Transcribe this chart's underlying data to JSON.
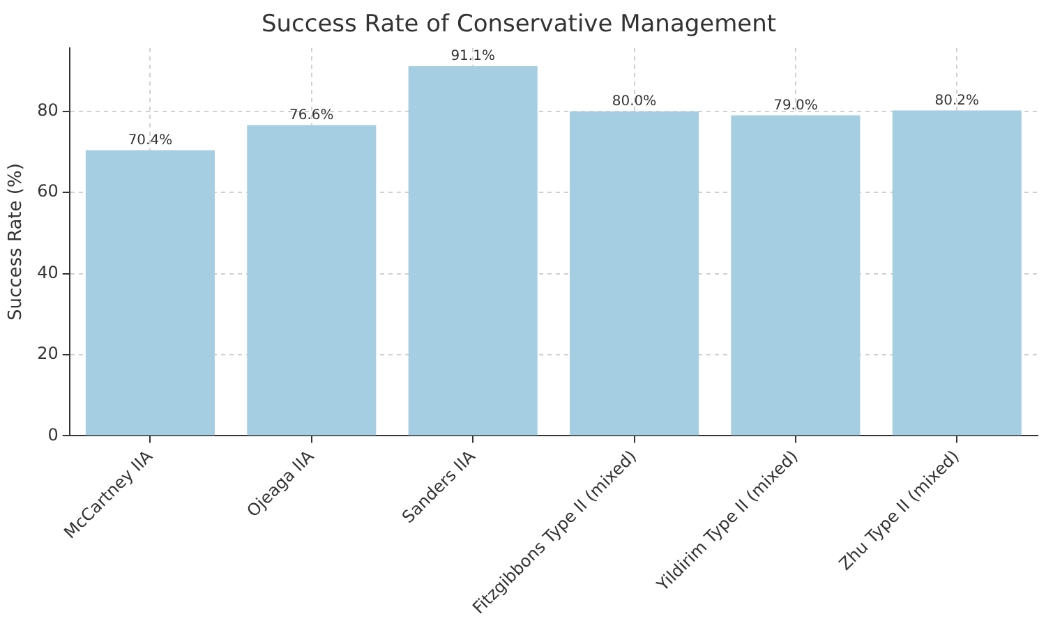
{
  "chart_data": {
    "type": "bar",
    "title": "Success Rate of Conservative Management",
    "ylabel": "Success Rate (%)",
    "categories": [
      "McCartney IIA",
      "Ojeaga IIA",
      "Sanders IIA",
      "Fitzgibbons Type II (mixed)",
      "Yildirim Type II (mixed)",
      "Zhu Type II (mixed)"
    ],
    "values": [
      70.4,
      76.6,
      91.1,
      80.0,
      79.0,
      80.2
    ],
    "value_labels": [
      "70.4%",
      "76.6%",
      "91.1%",
      "80.0%",
      "79.0%",
      "80.2%"
    ],
    "color": "#a6cee3",
    "ylim": [
      0,
      95.6
    ],
    "yticks": [
      0,
      20,
      40,
      60,
      80
    ],
    "grid": true,
    "legend": false
  }
}
